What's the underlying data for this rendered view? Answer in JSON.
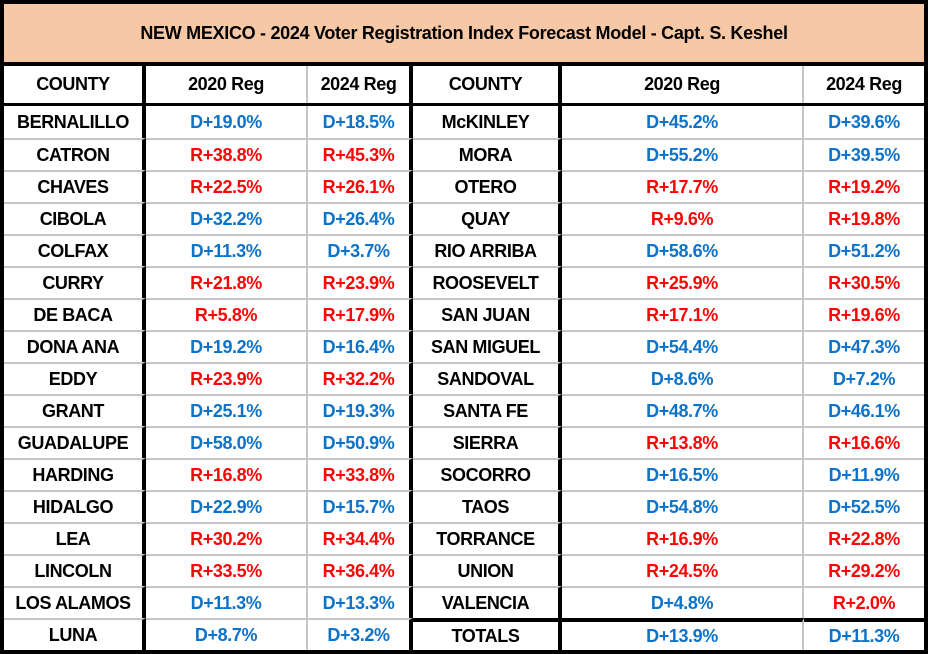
{
  "chart_data": {
    "type": "table",
    "title": "NEW MEXICO -  2024 Voter Registration Index Forecast Model - Capt. S. Keshel",
    "columns": [
      "COUNTY",
      "2020 Reg",
      "2024 Reg",
      "COUNTY",
      "2020 Reg",
      "2024 Reg"
    ],
    "rows": [
      [
        "BERNALILLO",
        "D+19.0%",
        "D+18.5%",
        "McKINLEY",
        "D+45.2%",
        "D+39.6%"
      ],
      [
        "CATRON",
        "R+38.8%",
        "R+45.3%",
        "MORA",
        "D+55.2%",
        "D+39.5%"
      ],
      [
        "CHAVES",
        "R+22.5%",
        "R+26.1%",
        "OTERO",
        "R+17.7%",
        "R+19.2%"
      ],
      [
        "CIBOLA",
        "D+32.2%",
        "D+26.4%",
        "QUAY",
        "R+9.6%",
        "R+19.8%"
      ],
      [
        "COLFAX",
        "D+11.3%",
        "D+3.7%",
        "RIO ARRIBA",
        "D+58.6%",
        "D+51.2%"
      ],
      [
        "CURRY",
        "R+21.8%",
        "R+23.9%",
        "ROOSEVELT",
        "R+25.9%",
        "R+30.5%"
      ],
      [
        "DE BACA",
        "R+5.8%",
        "R+17.9%",
        "SAN JUAN",
        "R+17.1%",
        "R+19.6%"
      ],
      [
        "DONA ANA",
        "D+19.2%",
        "D+16.4%",
        "SAN MIGUEL",
        "D+54.4%",
        "D+47.3%"
      ],
      [
        "EDDY",
        "R+23.9%",
        "R+32.2%",
        "SANDOVAL",
        "D+8.6%",
        "D+7.2%"
      ],
      [
        "GRANT",
        "D+25.1%",
        "D+19.3%",
        "SANTA FE",
        "D+48.7%",
        "D+46.1%"
      ],
      [
        "GUADALUPE",
        "D+58.0%",
        "D+50.9%",
        "SIERRA",
        "R+13.8%",
        "R+16.6%"
      ],
      [
        "HARDING",
        "R+16.8%",
        "R+33.8%",
        "SOCORRO",
        "D+16.5%",
        "D+11.9%"
      ],
      [
        "HIDALGO",
        "D+22.9%",
        "D+15.7%",
        "TAOS",
        "D+54.8%",
        "D+52.5%"
      ],
      [
        "LEA",
        "R+30.2%",
        "R+34.4%",
        "TORRANCE",
        "R+16.9%",
        "R+22.8%"
      ],
      [
        "LINCOLN",
        "R+33.5%",
        "R+36.4%",
        "UNION",
        "R+24.5%",
        "R+29.2%"
      ],
      [
        "LOS ALAMOS",
        "D+11.3%",
        "D+13.3%",
        "VALENCIA",
        "D+4.8%",
        "R+2.0%"
      ],
      [
        "LUNA",
        "D+8.7%",
        "D+3.2%",
        "TOTALS",
        "D+13.9%",
        "D+11.3%"
      ]
    ]
  },
  "colors": {
    "dem_blue": "#0e73c8",
    "rep_red": "#fb0606",
    "title_bg": "#f6c8a6",
    "grid_gray": "#c6c6c6",
    "border_black": "#000000"
  }
}
